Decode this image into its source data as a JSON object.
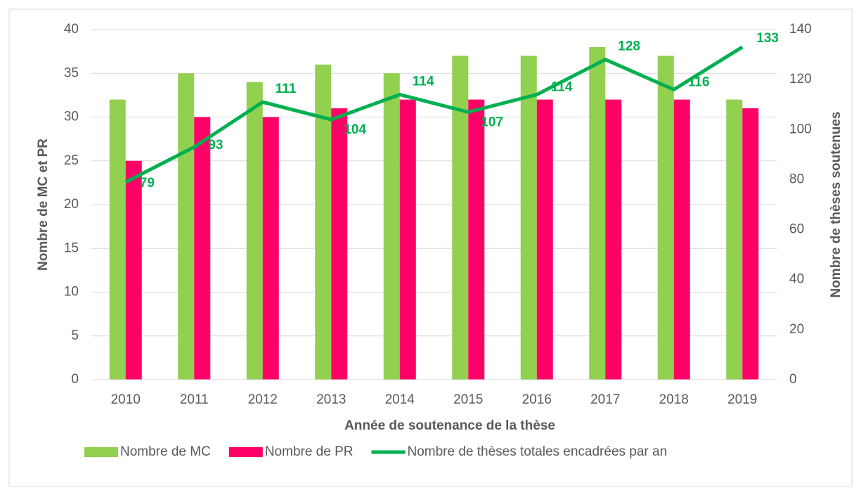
{
  "chart_data": {
    "type": "bar_line",
    "x_label": "Année de soutenance de la thèse",
    "y_label": "Nombre de MC et PR",
    "y2_label": "Nombre de thèses soutenues",
    "categories": [
      "2010",
      "2011",
      "2012",
      "2013",
      "2014",
      "2015",
      "2016",
      "2017",
      "2018",
      "2019"
    ],
    "series": [
      {
        "name": "Nombre de MC",
        "type": "bar",
        "color": "#92d050",
        "values": [
          32,
          35,
          34,
          36,
          35,
          37,
          37,
          38,
          37,
          32
        ]
      },
      {
        "name": "Nombre de PR",
        "type": "bar",
        "color": "#ff0066",
        "values": [
          25,
          30,
          30,
          31,
          32,
          32,
          32,
          32,
          32,
          31
        ]
      },
      {
        "name": "Nombre de thèses totales encadrées par an",
        "type": "line",
        "axis": "y2",
        "color": "#00b050",
        "values": [
          79,
          93,
          111,
          104,
          114,
          107,
          114,
          128,
          116,
          133
        ]
      }
    ],
    "ylim": [
      0,
      40
    ],
    "yticks": [
      0,
      5,
      10,
      15,
      20,
      25,
      30,
      35,
      40
    ],
    "y2lim": [
      0,
      140
    ],
    "y2ticks": [
      0,
      20,
      40,
      60,
      80,
      100,
      120,
      140
    ],
    "grid": true,
    "legend": "bottom"
  }
}
